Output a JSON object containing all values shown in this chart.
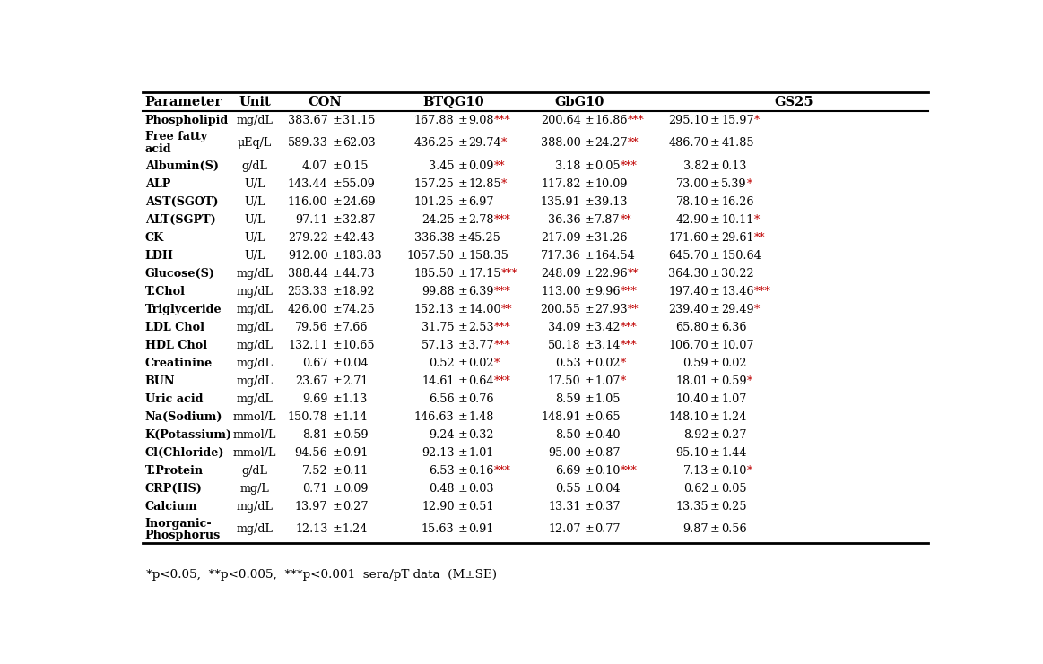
{
  "footnote": "*p<0.05,  **p<0.005,  ***p<0.001  sera/pT data  (M±SE)",
  "rows": [
    [
      "Phospholipid",
      "mg/dL",
      "383.67",
      "±",
      "31.15",
      "167.88",
      "±",
      "9.08***",
      "200.64",
      "±",
      "16.86***",
      "295.10",
      "±",
      "15.97*"
    ],
    [
      "Free fatty\nacid",
      "μEq/L",
      "589.33",
      "±",
      "62.03",
      "436.25",
      "±",
      "29.74*",
      "388.00",
      "±",
      "24.27**",
      "486.70",
      "±",
      "41.85"
    ],
    [
      "Albumin(S)",
      "g/dL",
      "4.07",
      "±",
      "0.15",
      "3.45",
      "±",
      "0.09**",
      "3.18",
      "±",
      "0.05***",
      "3.82",
      "±",
      "0.13"
    ],
    [
      "ALP",
      "U/L",
      "143.44",
      "±",
      "55.09",
      "157.25",
      "±",
      "12.85*",
      "117.82",
      "±",
      "10.09",
      "73.00",
      "±",
      "5.39*"
    ],
    [
      "AST(SGOT)",
      "U/L",
      "116.00",
      "±",
      "24.69",
      "101.25",
      "±",
      "6.97",
      "135.91",
      "±",
      "39.13",
      "78.10",
      "±",
      "16.26"
    ],
    [
      "ALT(SGPT)",
      "U/L",
      "97.11",
      "±",
      "32.87",
      "24.25",
      "±",
      "2.78***",
      "36.36",
      "±",
      "7.87**",
      "42.90",
      "±",
      "10.11*"
    ],
    [
      "CK",
      "U/L",
      "279.22",
      "±",
      "42.43",
      "336.38",
      "±",
      "45.25",
      "217.09",
      "±",
      "31.26",
      "171.60",
      "±",
      "29.61**"
    ],
    [
      "LDH",
      "U/L",
      "912.00",
      "±",
      "183.83",
      "1057.50",
      "±",
      "158.35",
      "717.36",
      "±",
      "164.54",
      "645.70",
      "±",
      "150.64"
    ],
    [
      "Glucose(S)",
      "mg/dL",
      "388.44",
      "±",
      "44.73",
      "185.50",
      "±",
      "17.15***",
      "248.09",
      "±",
      "22.96**",
      "364.30",
      "±",
      "30.22"
    ],
    [
      "T.Chol",
      "mg/dL",
      "253.33",
      "±",
      "18.92",
      "99.88",
      "±",
      "6.39***",
      "113.00",
      "±",
      "9.96***",
      "197.40",
      "±",
      "13.46***"
    ],
    [
      "Triglyceride",
      "mg/dL",
      "426.00",
      "±",
      "74.25",
      "152.13",
      "±",
      "14.00**",
      "200.55",
      "±",
      "27.93**",
      "239.40",
      "±",
      "29.49*"
    ],
    [
      "LDL Chol",
      "mg/dL",
      "79.56",
      "±",
      "7.66",
      "31.75",
      "±",
      "2.53***",
      "34.09",
      "±",
      "3.42***",
      "65.80",
      "±",
      "6.36"
    ],
    [
      "HDL Chol",
      "mg/dL",
      "132.11",
      "±",
      "10.65",
      "57.13",
      "±",
      "3.77***",
      "50.18",
      "±",
      "3.14***",
      "106.70",
      "±",
      "10.07"
    ],
    [
      "Creatinine",
      "mg/dL",
      "0.67",
      "±",
      "0.04",
      "0.52",
      "±",
      "0.02*",
      "0.53",
      "±",
      "0.02*",
      "0.59",
      "±",
      "0.02"
    ],
    [
      "BUN",
      "mg/dL",
      "23.67",
      "±",
      "2.71",
      "14.61",
      "±",
      "0.64***",
      "17.50",
      "±",
      "1.07*",
      "18.01",
      "±",
      "0.59*"
    ],
    [
      "Uric acid",
      "mg/dL",
      "9.69",
      "±",
      "1.13",
      "6.56",
      "±",
      "0.76",
      "8.59",
      "±",
      "1.05",
      "10.40",
      "±",
      "1.07"
    ],
    [
      "Na(Sodium)",
      "mmol/L",
      "150.78",
      "±",
      "1.14",
      "146.63",
      "±",
      "1.48",
      "148.91",
      "±",
      "0.65",
      "148.10",
      "±",
      "1.24"
    ],
    [
      "K(Potassium)",
      "mmol/L",
      "8.81",
      "±",
      "0.59",
      "9.24",
      "±",
      "0.32",
      "8.50",
      "±",
      "0.40",
      "8.92",
      "±",
      "0.27"
    ],
    [
      "Cl(Chloride)",
      "mmol/L",
      "94.56",
      "±",
      "0.91",
      "92.13",
      "±",
      "1.01",
      "95.00",
      "±",
      "0.87",
      "95.10",
      "±",
      "1.44"
    ],
    [
      "T.Protein",
      "g/dL",
      "7.52",
      "±",
      "0.11",
      "6.53",
      "±",
      "0.16***",
      "6.69",
      "±",
      "0.10***",
      "7.13",
      "±",
      "0.10*"
    ],
    [
      "CRP(HS)",
      "mg/L",
      "0.71",
      "±",
      "0.09",
      "0.48",
      "±",
      "0.03",
      "0.55",
      "±",
      "0.04",
      "0.62",
      "±",
      "0.05"
    ],
    [
      "Calcium",
      "mg/dL",
      "13.97",
      "±",
      "0.27",
      "12.90",
      "±",
      "0.51",
      "13.31",
      "±",
      "0.37",
      "13.35",
      "±",
      "0.25"
    ],
    [
      "Inorganic-\nPhosphorus",
      "mg/dL",
      "12.13",
      "±",
      "1.24",
      "15.63",
      "±",
      "0.91",
      "12.07",
      "±",
      "0.77",
      "9.87",
      "±",
      "0.56"
    ]
  ],
  "background_color": "#ffffff",
  "text_color": "#000000",
  "sig_color": "#c00000",
  "line_color": "#000000",
  "font_size": 9.2,
  "header_font_size": 10.5
}
